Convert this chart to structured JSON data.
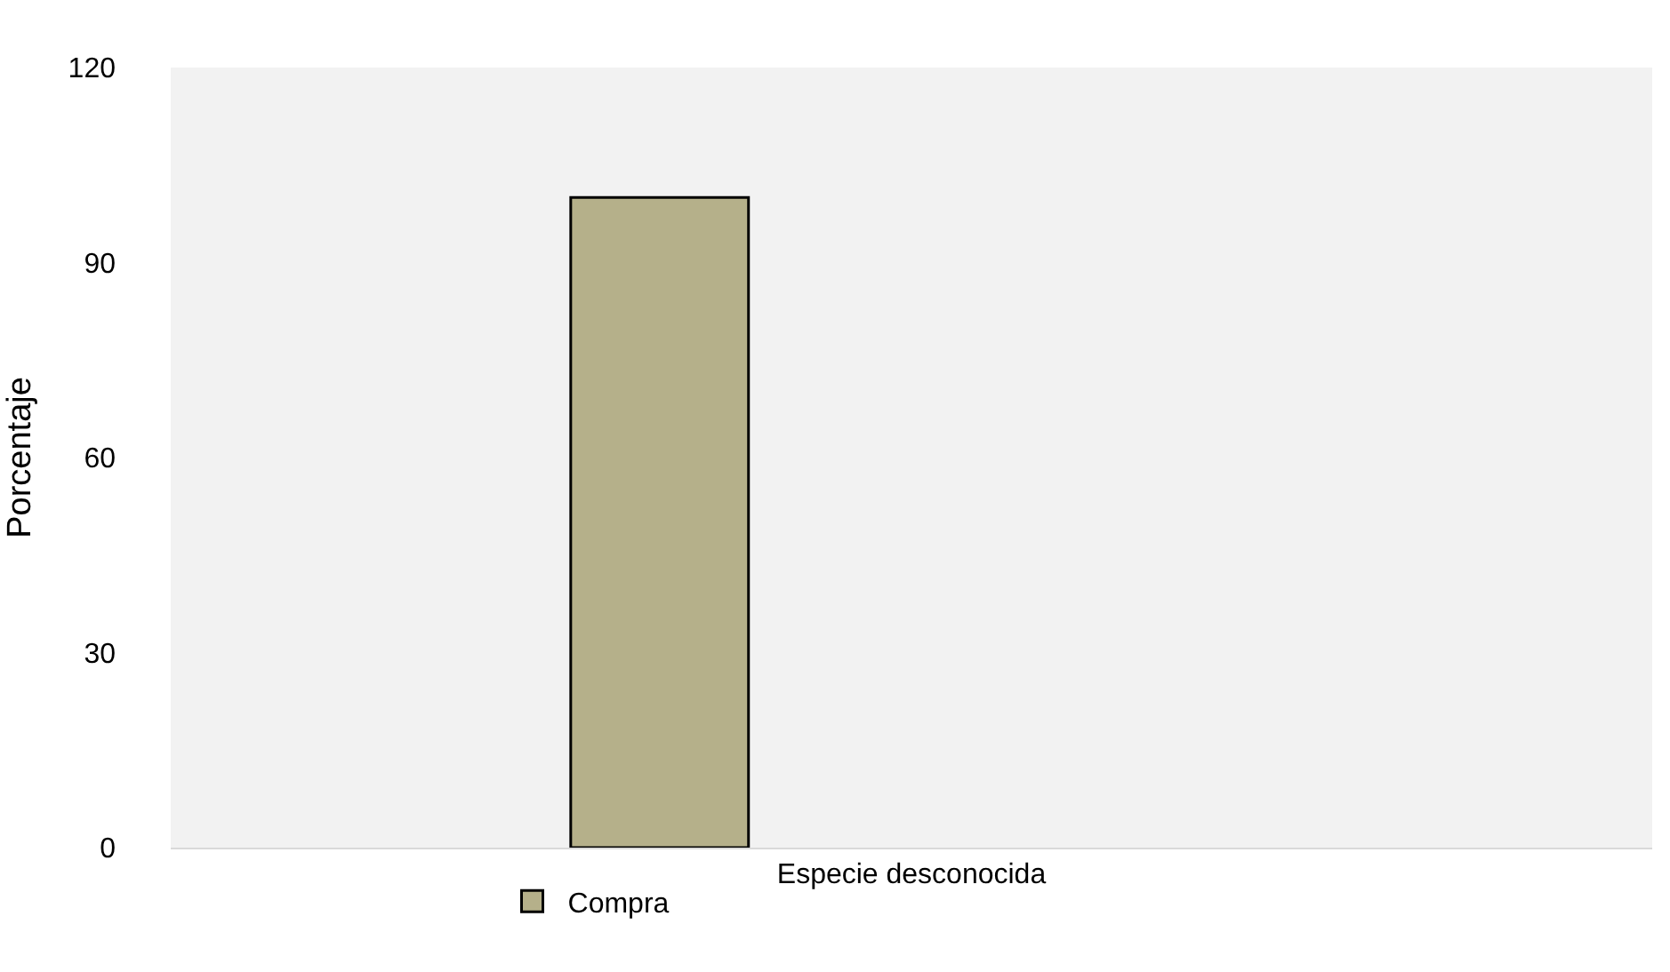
{
  "chart_data": {
    "type": "bar",
    "ylabel": "Porcentaje",
    "categories": [
      "Especie desconocida"
    ],
    "series": [
      {
        "name": "Compra",
        "color": "#b5b08a",
        "values": [
          100
        ]
      }
    ],
    "ylim": [
      0,
      120
    ],
    "yticks": [
      0,
      30,
      60,
      90,
      120
    ],
    "grid": false,
    "legend": "bottom left"
  }
}
